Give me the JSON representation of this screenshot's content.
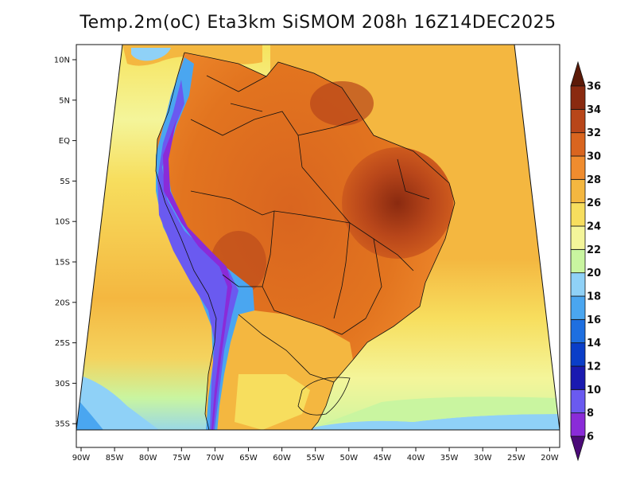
{
  "title": "Temp.2m(oC) Eta3km SiSMOM 208h 16Z14DEC2025",
  "variable": "Temp.2m",
  "units": "oC",
  "x_ticks": [
    "90W",
    "85W",
    "80W",
    "75W",
    "70W",
    "65W",
    "60W",
    "55W",
    "50W",
    "45W",
    "40W",
    "35W",
    "30W",
    "25W",
    "20W"
  ],
  "y_ticks": [
    "10N",
    "5N",
    "EQ",
    "5S",
    "10S",
    "15S",
    "20S",
    "25S",
    "30S",
    "35S"
  ],
  "colorbar": {
    "labels": [
      "6",
      "8",
      "10",
      "12",
      "14",
      "16",
      "18",
      "20",
      "22",
      "24",
      "26",
      "28",
      "30",
      "32",
      "34",
      "36"
    ],
    "colors": [
      "#4b0a78",
      "#8a2bd8",
      "#6a5af0",
      "#1a1ab0",
      "#0a3ec8",
      "#1e6fe0",
      "#4aa6f0",
      "#8fd1f7",
      "#c9f5a0",
      "#f4f59a",
      "#f7de5e",
      "#f4b740",
      "#f08c2e",
      "#d9651f",
      "#b8461a",
      "#8a2a10",
      "#5c1a08"
    ]
  },
  "regions": [
    {
      "id": "ocean-pacific-north",
      "temp_class": "26-28"
    },
    {
      "id": "ocean-pacific-south",
      "temp_class": "22-24"
    },
    {
      "id": "ocean-atlantic-north",
      "temp_class": "28-30"
    },
    {
      "id": "ocean-atlantic-south",
      "temp_class": "22-26"
    },
    {
      "id": "amazon-basin",
      "temp_class": "30-32"
    },
    {
      "id": "northeast-brazil",
      "temp_class": "32-34"
    },
    {
      "id": "andes",
      "temp_class": "6-18"
    },
    {
      "id": "southern-cone",
      "temp_class": "24-28"
    }
  ]
}
